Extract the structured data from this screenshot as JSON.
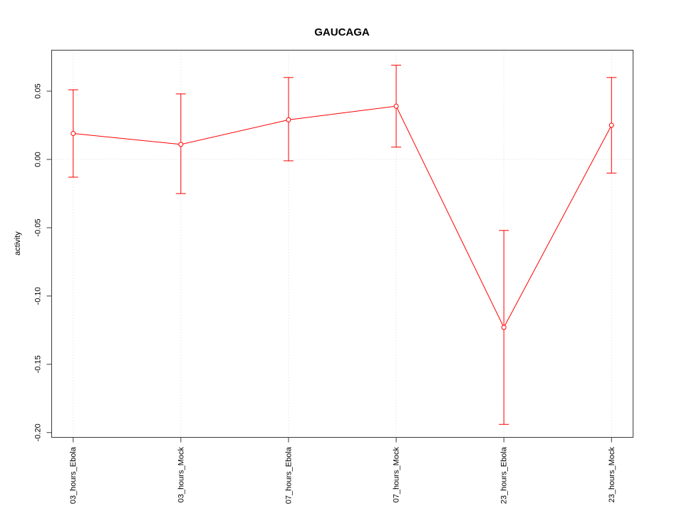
{
  "chart_data": {
    "type": "line",
    "title": "GAUCAGA",
    "xlabel": "",
    "ylabel": "activity",
    "categories": [
      "03_hours_Ebola",
      "03_hours_Mock",
      "07_hours_Ebola",
      "07_hours_Mock",
      "23_hours_Ebola",
      "23_hours_Mock"
    ],
    "series": [
      {
        "name": "activity",
        "values": [
          0.019,
          0.011,
          0.029,
          0.039,
          -0.123,
          0.025
        ],
        "upper": [
          0.051,
          0.048,
          0.06,
          0.069,
          -0.052,
          0.06
        ],
        "lower": [
          -0.013,
          -0.025,
          -0.001,
          0.009,
          -0.194,
          -0.01
        ]
      }
    ],
    "ytick_labels": [
      "0.05",
      "0.00",
      "-0.05",
      "-0.10",
      "-0.15",
      "-0.20"
    ],
    "yticks": [
      0.05,
      0.0,
      -0.05,
      -0.1,
      -0.15,
      -0.2
    ],
    "ylim": [
      -0.2035,
      0.08
    ],
    "legend": "none",
    "grid": {
      "vertical_at_categories": true,
      "horizontal_zero_line": true,
      "style": "dotted"
    },
    "marker": "open-circle",
    "colors": {
      "series": "#ff0000",
      "grid": "#d9d9d9",
      "axis": "#3a3a3a",
      "background": "#ffffff",
      "text": "#000000"
    }
  }
}
